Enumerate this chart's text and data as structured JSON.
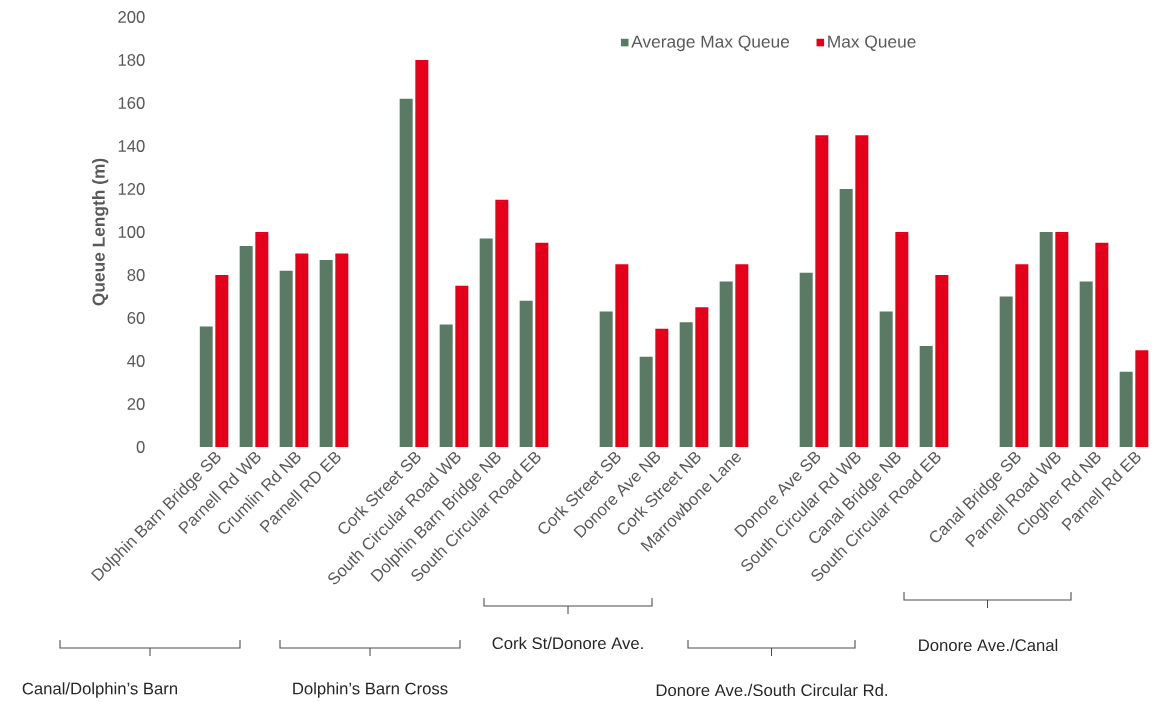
{
  "chart_data": {
    "type": "bar",
    "ylabel": "Queue Length (m)",
    "categories": [
      "Dolphin Barn Bridge SB",
      "Parnell Rd WB",
      "Crumlin Rd NB",
      "Parnell RD EB",
      null,
      "Cork Street SB",
      "South Circular Road WB",
      "Dolphin Barn Bridge NB",
      "South Circular Road EB",
      null,
      "Cork Street SB",
      "Donore Ave NB",
      "Cork Street NB",
      "Marrowbone Lane",
      null,
      "Donore Ave SB",
      "South Circular Rd WB",
      "Canal Bridge NB",
      "South Circular Road EB",
      null,
      "Canal Bridge SB",
      "Parnell Road WB",
      "Clogher Rd NB",
      "Parnell Rd EB"
    ],
    "series": [
      {
        "name": "Average Max Queue",
        "color": "#5b7a66",
        "values": [
          56,
          93.5,
          82,
          87,
          null,
          162,
          57,
          97,
          68,
          null,
          63,
          42,
          58,
          77,
          null,
          81,
          120,
          63,
          47,
          null,
          70,
          100,
          77,
          35
        ]
      },
      {
        "name": "Max Queue",
        "color": "#e3001b",
        "values": [
          80,
          100,
          90,
          90,
          null,
          180,
          75,
          115,
          95,
          null,
          85,
          55,
          65,
          85,
          null,
          145,
          145,
          100,
          80,
          null,
          85,
          100,
          95,
          45
        ]
      }
    ],
    "ylim": [
      0,
      200
    ],
    "yticks": [
      0,
      20,
      40,
      60,
      80,
      100,
      120,
      140,
      160,
      180,
      200
    ],
    "legend": "top",
    "annotations": [
      "Canal/Dolphin’s Barn",
      "Dolphin’s Barn Cross",
      "Cork St/Donore Ave.",
      "Donore Ave./South Circular Rd.",
      "Donore Ave./Canal"
    ]
  }
}
